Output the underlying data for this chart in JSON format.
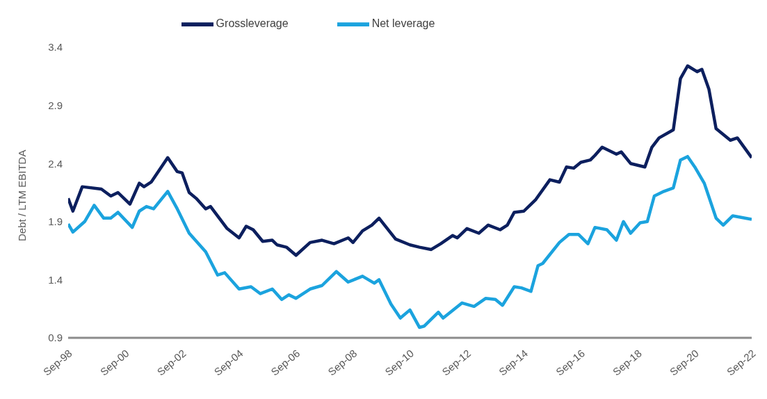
{
  "chart_data": {
    "type": "line",
    "ylabel": "Debt  / LTM EBITDA",
    "ylim": [
      0.9,
      3.4
    ],
    "yticks": [
      0.9,
      1.4,
      1.9,
      2.4,
      2.9,
      3.4
    ],
    "xlim": [
      "1998-09",
      "2022-09"
    ],
    "xticks": [
      {
        "value": "1998-09",
        "label": "Sep-98"
      },
      {
        "value": "2000-09",
        "label": "Sep-00"
      },
      {
        "value": "2002-09",
        "label": "Sep-02"
      },
      {
        "value": "2004-09",
        "label": "Sep-04"
      },
      {
        "value": "2006-09",
        "label": "Sep-06"
      },
      {
        "value": "2008-09",
        "label": "Sep-08"
      },
      {
        "value": "2010-09",
        "label": "Sep-10"
      },
      {
        "value": "2012-09",
        "label": "Sep-12"
      },
      {
        "value": "2014-09",
        "label": "Sep-14"
      },
      {
        "value": "2016-09",
        "label": "Sep-16"
      },
      {
        "value": "2018-09",
        "label": "Sep-18"
      },
      {
        "value": "2020-09",
        "label": "Sep-20"
      },
      {
        "value": "2022-09",
        "label": "Sep-22"
      }
    ],
    "grid": false,
    "legend": "top",
    "marker": "none",
    "line_style": "solid",
    "series": [
      {
        "name": "Grossleverage",
        "color": "#0c1f5e",
        "x": [
          "1998-09",
          "1998-11",
          "1999-03",
          "1999-11",
          "2000-03",
          "2000-06",
          "2000-11",
          "2001-03",
          "2001-05",
          "2001-08",
          "2002-03",
          "2002-07",
          "2002-09",
          "2002-12",
          "2003-03",
          "2003-07",
          "2003-09",
          "2004-04",
          "2004-09",
          "2004-12",
          "2005-03",
          "2005-07",
          "2005-11",
          "2006-01",
          "2006-05",
          "2006-09",
          "2007-03",
          "2007-08",
          "2008-01",
          "2008-07",
          "2008-09",
          "2009-01",
          "2009-05",
          "2009-08",
          "2010-03",
          "2010-09",
          "2011-01",
          "2011-06",
          "2011-10",
          "2012-03",
          "2012-05",
          "2012-09",
          "2013-02",
          "2013-06",
          "2013-11",
          "2014-02",
          "2014-05",
          "2014-09",
          "2015-02",
          "2015-08",
          "2015-12",
          "2016-03",
          "2016-06",
          "2016-09",
          "2017-01",
          "2017-03",
          "2017-06",
          "2017-12",
          "2018-02",
          "2018-06",
          "2018-12",
          "2019-03",
          "2019-06",
          "2019-12",
          "2020-03",
          "2020-06",
          "2020-10",
          "2020-12",
          "2021-03",
          "2021-06",
          "2021-12",
          "2022-03",
          "2022-09"
        ],
        "values": [
          2.1,
          1.99,
          2.2,
          2.18,
          2.12,
          2.15,
          2.05,
          2.23,
          2.2,
          2.24,
          2.45,
          2.33,
          2.32,
          2.15,
          2.1,
          2.01,
          2.03,
          1.84,
          1.76,
          1.86,
          1.83,
          1.73,
          1.74,
          1.7,
          1.68,
          1.61,
          1.72,
          1.74,
          1.71,
          1.76,
          1.72,
          1.82,
          1.87,
          1.93,
          1.75,
          1.7,
          1.68,
          1.66,
          1.71,
          1.78,
          1.76,
          1.84,
          1.8,
          1.87,
          1.83,
          1.87,
          1.98,
          1.99,
          2.09,
          2.26,
          2.24,
          2.37,
          2.36,
          2.41,
          2.43,
          2.47,
          2.54,
          2.48,
          2.5,
          2.4,
          2.37,
          2.54,
          2.62,
          2.69,
          3.13,
          3.24,
          3.19,
          3.21,
          3.04,
          2.7,
          2.6,
          2.62,
          2.45
        ]
      },
      {
        "name": "Net leverage",
        "color": "#1ba3de",
        "x": [
          "1998-09",
          "1998-11",
          "1999-04",
          "1999-08",
          "1999-12",
          "2000-03",
          "2000-06",
          "2000-12",
          "2001-03",
          "2001-06",
          "2001-09",
          "2002-03",
          "2002-07",
          "2002-12",
          "2003-07",
          "2003-12",
          "2004-03",
          "2004-09",
          "2005-02",
          "2005-06",
          "2005-11",
          "2006-03",
          "2006-06",
          "2006-09",
          "2007-03",
          "2007-08",
          "2008-02",
          "2008-07",
          "2009-01",
          "2009-06",
          "2009-08",
          "2010-01",
          "2010-05",
          "2010-09",
          "2011-01",
          "2011-03",
          "2011-09",
          "2011-11",
          "2012-07",
          "2012-12",
          "2013-05",
          "2013-09",
          "2013-12",
          "2014-05",
          "2014-08",
          "2014-12",
          "2015-03",
          "2015-05",
          "2015-12",
          "2016-04",
          "2016-08",
          "2016-12",
          "2017-03",
          "2017-08",
          "2017-12",
          "2018-03",
          "2018-06",
          "2018-10",
          "2019-01",
          "2019-04",
          "2019-08",
          "2019-12",
          "2020-03",
          "2020-06",
          "2020-09",
          "2021-01",
          "2021-06",
          "2021-09",
          "2022-01",
          "2022-09"
        ],
        "values": [
          1.88,
          1.81,
          1.9,
          2.04,
          1.93,
          1.93,
          1.98,
          1.85,
          1.99,
          2.03,
          2.01,
          2.16,
          2.01,
          1.8,
          1.64,
          1.44,
          1.46,
          1.32,
          1.34,
          1.28,
          1.32,
          1.23,
          1.27,
          1.24,
          1.32,
          1.35,
          1.47,
          1.38,
          1.43,
          1.37,
          1.4,
          1.19,
          1.07,
          1.14,
          0.99,
          1.0,
          1.12,
          1.07,
          1.2,
          1.17,
          1.24,
          1.23,
          1.18,
          1.34,
          1.33,
          1.3,
          1.52,
          1.54,
          1.72,
          1.79,
          1.79,
          1.71,
          1.85,
          1.83,
          1.74,
          1.9,
          1.8,
          1.89,
          1.9,
          2.12,
          2.16,
          2.19,
          2.43,
          2.46,
          2.37,
          2.23,
          1.93,
          1.87,
          1.95,
          1.92
        ]
      }
    ]
  }
}
